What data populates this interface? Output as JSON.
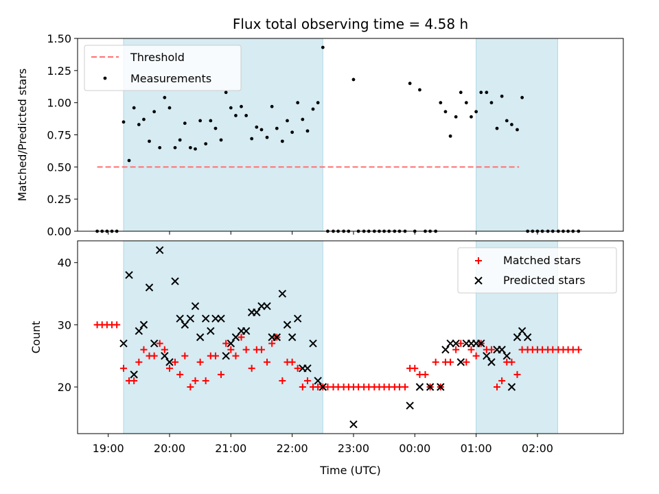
{
  "chart_data": [
    {
      "type": "scatter",
      "title": "Flux total observing time = 4.58 h",
      "xlabel": "",
      "ylabel": "Matched/Predicted stars",
      "xlim": [
        -0.5,
        8.4
      ],
      "ylim": [
        0,
        1.5
      ],
      "yticks": [
        "0.00",
        "0.25",
        "0.50",
        "0.75",
        "1.00",
        "1.25",
        "1.50"
      ],
      "shaded_regions": [
        [
          0.25,
          3.5
        ],
        [
          6.0,
          7.33
        ]
      ],
      "shade_color": "#add8e6",
      "threshold": {
        "name": "Threshold",
        "value": 0.5,
        "x_start": -0.18,
        "x_end": 6.7,
        "color": "#ff6f6f"
      },
      "legend": [
        "Threshold",
        "Measurements"
      ],
      "legend_position": "upper-left",
      "series": [
        {
          "name": "Measurements",
          "color": "#000000",
          "marker": "dot",
          "x": [
            -0.18,
            -0.1,
            -0.02,
            0.06,
            0.14,
            0.25,
            0.34,
            0.42,
            0.5,
            0.58,
            0.67,
            0.75,
            0.84,
            0.92,
            1.0,
            1.09,
            1.17,
            1.25,
            1.34,
            1.42,
            1.5,
            1.59,
            1.67,
            1.75,
            1.84,
            1.92,
            2.0,
            2.08,
            2.17,
            2.25,
            2.34,
            2.42,
            2.5,
            2.59,
            2.67,
            2.75,
            2.84,
            2.92,
            3.0,
            3.09,
            3.17,
            3.25,
            3.34,
            3.42,
            3.5,
            3.58,
            3.67,
            3.75,
            3.84,
            3.92,
            4.0,
            4.08,
            4.17,
            4.25,
            4.34,
            4.42,
            4.5,
            4.58,
            4.67,
            4.75,
            4.84,
            4.92,
            5.0,
            5.08,
            5.17,
            5.25,
            5.34,
            5.42,
            5.5,
            5.58,
            5.67,
            5.75,
            5.84,
            5.92,
            6.0,
            6.08,
            6.17,
            6.25,
            6.34,
            6.42,
            6.5,
            6.58,
            6.67,
            6.75,
            6.84,
            6.92,
            7.0,
            7.08,
            7.17,
            7.25,
            7.34,
            7.42,
            7.5,
            7.58,
            7.67
          ],
          "y": [
            0,
            0,
            0,
            0,
            0,
            0.85,
            0.55,
            0.96,
            0.83,
            0.87,
            0.7,
            0.93,
            0.65,
            1.04,
            0.96,
            0.65,
            0.71,
            0.84,
            0.65,
            0.64,
            0.86,
            0.68,
            0.86,
            0.8,
            0.71,
            1.08,
            0.96,
            0.9,
            0.97,
            0.9,
            0.72,
            0.81,
            0.79,
            0.73,
            0.97,
            0.8,
            0.7,
            0.86,
            0.77,
            1.0,
            0.87,
            0.78,
            0.95,
            1.0,
            1.43,
            0,
            0,
            0,
            0,
            0,
            1.18,
            0,
            0,
            0,
            0,
            0,
            0,
            0,
            0,
            0,
            0,
            1.15,
            0,
            1.1,
            0,
            0,
            0,
            1.0,
            0.93,
            0.74,
            0.89,
            1.08,
            1.0,
            0.89,
            0.93,
            1.08,
            1.08,
            1.0,
            0.8,
            1.05,
            0.86,
            0.83,
            0.79,
            1.04,
            0,
            0,
            0,
            0,
            0,
            0,
            0,
            0,
            0,
            0,
            0
          ]
        }
      ]
    },
    {
      "type": "scatter",
      "title": "",
      "xlabel": "Time (UTC)",
      "ylabel": "Count",
      "xlim": [
        -0.5,
        8.4
      ],
      "ylim": [
        12.5,
        43.5
      ],
      "yticks": [
        "20",
        "30",
        "40"
      ],
      "xticks": [
        "19:00",
        "20:00",
        "21:00",
        "22:00",
        "23:00",
        "00:00",
        "01:00",
        "02:00"
      ],
      "shaded_regions": [
        [
          0.25,
          3.5
        ],
        [
          6.0,
          7.33
        ]
      ],
      "shade_color": "#add8e6",
      "legend": [
        "Matched stars",
        "Predicted stars"
      ],
      "legend_position": "upper-right",
      "series": [
        {
          "name": "Matched stars",
          "color": "#ff0000",
          "marker": "plus",
          "x": [
            -0.18,
            -0.1,
            -0.02,
            0.06,
            0.14,
            0.25,
            0.34,
            0.42,
            0.5,
            0.58,
            0.67,
            0.75,
            0.84,
            0.92,
            1.0,
            1.09,
            1.17,
            1.25,
            1.34,
            1.42,
            1.5,
            1.59,
            1.67,
            1.75,
            1.84,
            1.92,
            2.0,
            2.08,
            2.17,
            2.25,
            2.34,
            2.42,
            2.5,
            2.59,
            2.67,
            2.75,
            2.84,
            2.92,
            3.0,
            3.09,
            3.17,
            3.25,
            3.34,
            3.42,
            3.5,
            3.58,
            3.67,
            3.75,
            3.84,
            3.92,
            4.0,
            4.08,
            4.17,
            4.25,
            4.34,
            4.42,
            4.5,
            4.58,
            4.67,
            4.75,
            4.84,
            4.92,
            5.0,
            5.08,
            5.17,
            5.25,
            5.34,
            5.42,
            5.5,
            5.58,
            5.67,
            5.75,
            5.84,
            5.92,
            6.0,
            6.08,
            6.17,
            6.25,
            6.34,
            6.42,
            6.5,
            6.58,
            6.67,
            6.75,
            6.84,
            6.92,
            7.0,
            7.08,
            7.17,
            7.25,
            7.34,
            7.42,
            7.5,
            7.58,
            7.67
          ],
          "y": [
            30,
            30,
            30,
            30,
            30,
            23,
            21,
            21,
            24,
            26,
            25,
            25,
            27,
            26,
            23,
            24,
            22,
            25,
            20,
            21,
            24,
            21,
            25,
            25,
            22,
            27,
            26,
            25,
            28,
            26,
            23,
            26,
            26,
            24,
            27,
            28,
            21,
            24,
            24,
            23,
            20,
            21,
            20,
            20,
            20,
            20,
            20,
            20,
            20,
            20,
            20,
            20,
            20,
            20,
            20,
            20,
            20,
            20,
            20,
            20,
            20,
            23,
            23,
            22,
            22,
            20,
            24,
            20,
            24,
            24,
            26,
            27,
            24,
            26,
            25,
            27,
            26,
            26,
            20,
            21,
            24,
            24,
            22,
            26,
            26,
            26,
            26,
            26,
            26,
            26,
            26,
            26,
            26,
            26,
            26
          ]
        },
        {
          "name": "Predicted stars",
          "color": "#000000",
          "marker": "x",
          "x": [
            0.25,
            0.34,
            0.42,
            0.5,
            0.58,
            0.67,
            0.75,
            0.84,
            0.92,
            1.0,
            1.09,
            1.17,
            1.25,
            1.34,
            1.42,
            1.5,
            1.59,
            1.67,
            1.75,
            1.84,
            1.92,
            2.0,
            2.08,
            2.17,
            2.25,
            2.34,
            2.42,
            2.5,
            2.59,
            2.67,
            2.75,
            2.84,
            2.92,
            3.0,
            3.09,
            3.17,
            3.25,
            3.34,
            3.42,
            3.5,
            4.0,
            4.92,
            5.08,
            5.25,
            5.42,
            5.5,
            5.58,
            5.67,
            5.75,
            5.84,
            5.92,
            6.0,
            6.08,
            6.17,
            6.25,
            6.34,
            6.42,
            6.5,
            6.58,
            6.67,
            6.75,
            6.84
          ],
          "y": [
            27,
            38,
            22,
            29,
            30,
            36,
            27,
            42,
            25,
            24,
            37,
            31,
            30,
            31,
            33,
            28,
            31,
            29,
            31,
            31,
            25,
            27,
            28,
            29,
            29,
            32,
            32,
            33,
            33,
            28,
            28,
            35,
            30,
            28,
            31,
            23,
            23,
            27,
            21,
            20,
            14,
            17,
            20,
            20,
            20,
            26,
            27,
            27,
            24,
            27,
            27,
            27,
            27,
            25,
            24,
            26,
            26,
            25,
            20,
            28,
            29,
            28
          ]
        }
      ]
    }
  ]
}
